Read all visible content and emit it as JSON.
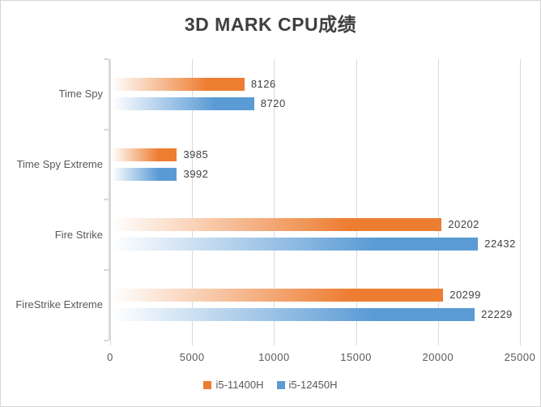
{
  "chart_data": {
    "type": "bar",
    "orientation": "horizontal",
    "title": "3D MARK CPU成绩",
    "categories": [
      "Time Spy",
      "Time Spy Extreme",
      "Fire Strike",
      "FireStrike Extreme"
    ],
    "series": [
      {
        "name": "i5-11400H",
        "color": "#ED7D31",
        "values": [
          8126,
          3985,
          20202,
          20299
        ]
      },
      {
        "name": "i5-12450H",
        "color": "#5B9BD5",
        "values": [
          8720,
          3992,
          22432,
          22229
        ]
      }
    ],
    "xlim": [
      0,
      25000
    ],
    "x_ticks": [
      0,
      5000,
      10000,
      15000,
      20000,
      25000
    ],
    "grid": "vertical-gridlines-on",
    "legend_position": "bottom",
    "value_labels": "outside-end",
    "colors": {
      "gridline": "#D9D9D9",
      "axis_line": "#D9D9D9",
      "category_text": "#595959",
      "axis_text": "#595959",
      "value_text": "#404040",
      "title_text": "#3F3F3F"
    }
  }
}
